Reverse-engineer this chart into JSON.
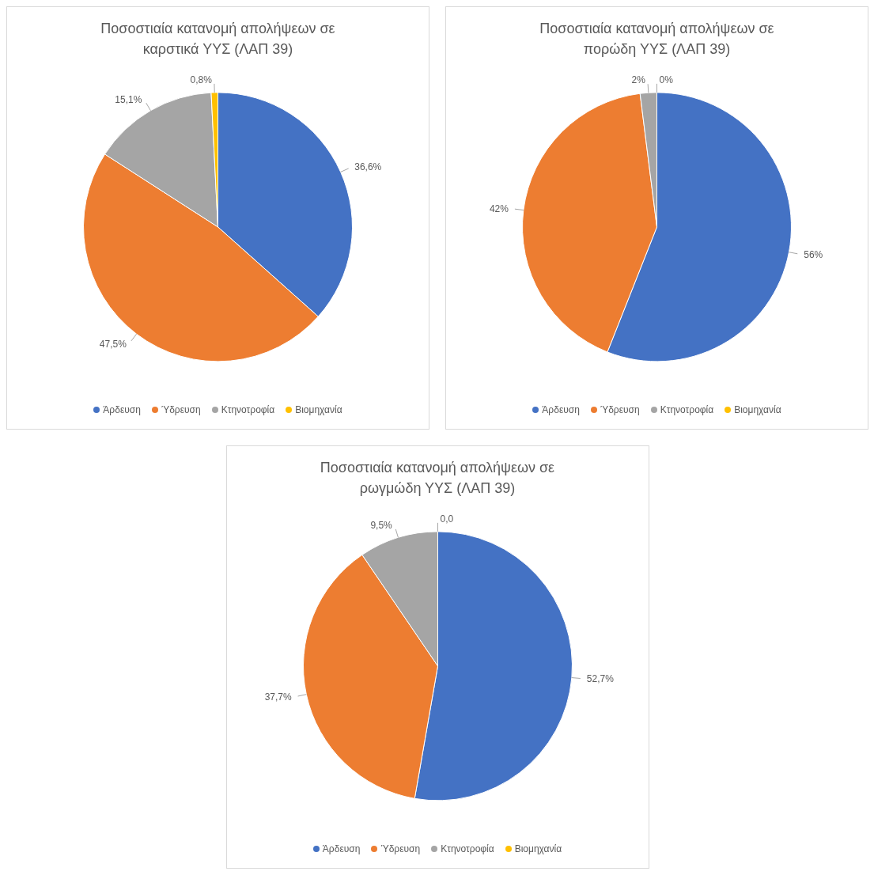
{
  "chart_data": [
    {
      "type": "pie",
      "title": "Ποσοστιαία κατανομή απολήψεων σε καρστικά ΥΥΣ (ΛΑΠ 39)",
      "categories": [
        "Άρδευση",
        "Ύδρευση",
        "Κτηνοτροφία",
        "Βιομηχανία"
      ],
      "values": [
        36.6,
        47.5,
        15.1,
        0.8
      ],
      "value_labels": [
        "36,6%",
        "47,5%",
        "15,1%",
        "0,8%"
      ],
      "colors": [
        "#4472c4",
        "#ed7d31",
        "#a5a5a5",
        "#ffc000"
      ],
      "legend": "bottom"
    },
    {
      "type": "pie",
      "title": "Ποσοστιαία κατανομή απολήψεων σε πορώδη ΥΥΣ (ΛΑΠ 39)",
      "categories": [
        "Άρδευση",
        "Ύδρευση",
        "Κτηνοτροφία",
        "Βιομηχανία"
      ],
      "values": [
        56,
        42,
        2,
        0
      ],
      "value_labels": [
        "56%",
        "42%",
        "2%",
        "0%"
      ],
      "colors": [
        "#4472c4",
        "#ed7d31",
        "#a5a5a5",
        "#ffc000"
      ],
      "legend": "bottom"
    },
    {
      "type": "pie",
      "title": "Ποσοστιαία κατανομή απολήψεων σε ρωγμώδη ΥΥΣ (ΛΑΠ 39)",
      "categories": [
        "Άρδευση",
        "Ύδρευση",
        "Κτηνοτροφία",
        "Βιομηχανία"
      ],
      "values": [
        52.7,
        37.7,
        9.5,
        0
      ],
      "value_labels": [
        "52,7%",
        "37,7%",
        "9,5%",
        "0,0"
      ],
      "colors": [
        "#4472c4",
        "#ed7d31",
        "#a5a5a5",
        "#ffc000"
      ],
      "legend": "bottom"
    }
  ]
}
